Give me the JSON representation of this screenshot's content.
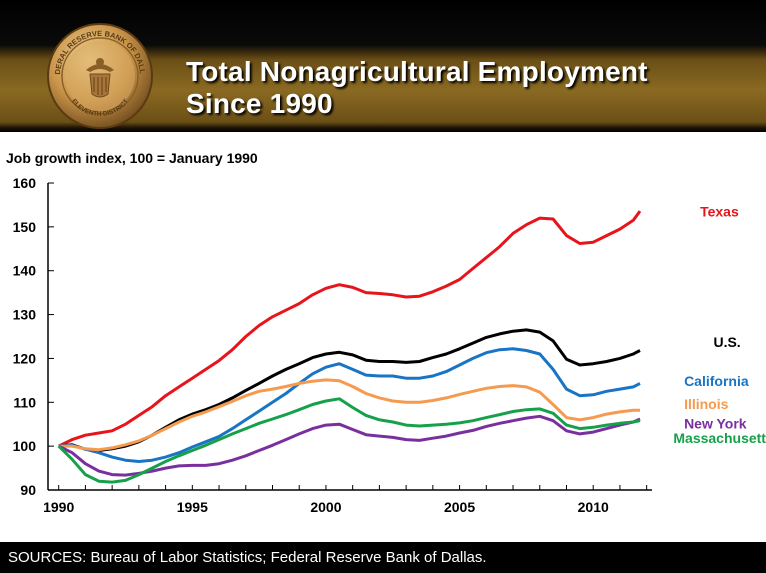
{
  "header": {
    "title_line1": "Total Nonagricultural  Employment",
    "title_line2": "Since 1990",
    "seal_text_top": "FEDERAL RESERVE BANK OF DALLAS",
    "seal_text_bottom": "ELEVENTH DISTRICT"
  },
  "footer": {
    "sources": "SOURCES: Bureau of Labor Statistics; Federal Reserve Bank of Dallas."
  },
  "chart_data": {
    "type": "line",
    "ylabel": "Job growth index, 100 = January 1990",
    "xlim": [
      1989.6,
      2012.2
    ],
    "ylim": [
      90,
      160
    ],
    "yticks": [
      90,
      100,
      110,
      120,
      130,
      140,
      150,
      160
    ],
    "xticks": [
      1990,
      1995,
      2000,
      2005,
      2010
    ],
    "grid": false,
    "legend_placement": "right, direct labels",
    "series": [
      {
        "name": "Texas",
        "color": "#e8141b",
        "x": [
          1990,
          1990.5,
          1991,
          1991.5,
          1992,
          1992.5,
          1993,
          1993.5,
          1994,
          1994.5,
          1995,
          1995.5,
          1996,
          1996.5,
          1997,
          1997.5,
          1998,
          1998.5,
          1999,
          1999.5,
          2000,
          2000.5,
          2001,
          2001.5,
          2002,
          2002.5,
          2003,
          2003.5,
          2004,
          2004.5,
          2005,
          2005.5,
          2006,
          2006.5,
          2007,
          2007.5,
          2008,
          2008.5,
          2009,
          2009.5,
          2010,
          2010.5,
          2011,
          2011.5,
          2011.75
        ],
        "values": [
          100,
          101.5,
          102.5,
          103,
          103.5,
          105,
          107,
          109,
          111.5,
          113.5,
          115.5,
          117.5,
          119.5,
          122,
          125,
          127.5,
          129.5,
          131,
          132.5,
          134.5,
          136,
          136.8,
          136.2,
          135,
          134.8,
          134.5,
          134,
          134.2,
          135.2,
          136.5,
          138,
          140.5,
          143,
          145.5,
          148.5,
          150.5,
          152,
          151.8,
          148,
          146.2,
          146.5,
          148,
          149.5,
          151.5,
          153.6
        ]
      },
      {
        "name": "U.S.",
        "color": "#000000",
        "x": [
          1990,
          1990.5,
          1991,
          1991.5,
          1992,
          1992.5,
          1993,
          1993.5,
          1994,
          1994.5,
          1995,
          1995.5,
          1996,
          1996.5,
          1997,
          1997.5,
          1998,
          1998.5,
          1999,
          1999.5,
          2000,
          2000.5,
          2001,
          2001.5,
          2002,
          2002.5,
          2003,
          2003.5,
          2004,
          2004.5,
          2005,
          2005.5,
          2006,
          2006.5,
          2007,
          2007.5,
          2008,
          2008.5,
          2009,
          2009.5,
          2010,
          2010.5,
          2011,
          2011.5,
          2011.75
        ],
        "values": [
          100,
          100.3,
          99.3,
          99,
          99.4,
          100,
          101,
          102.5,
          104.3,
          106,
          107.3,
          108.3,
          109.5,
          111,
          112.7,
          114.3,
          116,
          117.5,
          118.8,
          120.2,
          121,
          121.4,
          120.8,
          119.6,
          119.3,
          119.3,
          119.1,
          119.3,
          120.2,
          121,
          122.2,
          123.5,
          124.8,
          125.6,
          126.2,
          126.5,
          126,
          124,
          119.8,
          118.5,
          118.8,
          119.3,
          120,
          121,
          121.8
        ]
      },
      {
        "name": "California",
        "color": "#1874c4",
        "x": [
          1990,
          1990.5,
          1991,
          1991.5,
          1992,
          1992.5,
          1993,
          1993.5,
          1994,
          1994.5,
          1995,
          1995.5,
          1996,
          1996.5,
          1997,
          1997.5,
          1998,
          1998.5,
          1999,
          1999.5,
          2000,
          2000.5,
          2001,
          2001.5,
          2002,
          2002.5,
          2003,
          2003.5,
          2004,
          2004.5,
          2005,
          2005.5,
          2006,
          2006.5,
          2007,
          2007.5,
          2008,
          2008.5,
          2009,
          2009.5,
          2010,
          2010.5,
          2011,
          2011.5,
          2011.75
        ],
        "values": [
          100,
          100.2,
          99.3,
          98.5,
          97.5,
          96.8,
          96.5,
          96.8,
          97.5,
          98.5,
          99.8,
          101,
          102.2,
          104,
          106,
          108,
          110,
          112,
          114.3,
          116.5,
          118,
          118.8,
          117.5,
          116.2,
          116,
          116,
          115.5,
          115.5,
          116,
          117,
          118.5,
          120,
          121.3,
          122,
          122.2,
          121.8,
          121,
          117.5,
          113,
          111.5,
          111.7,
          112.5,
          113,
          113.5,
          114.3
        ]
      },
      {
        "name": "Illinois",
        "color": "#f59a4e",
        "x": [
          1990,
          1990.5,
          1991,
          1991.5,
          1992,
          1992.5,
          1993,
          1993.5,
          1994,
          1994.5,
          1995,
          1995.5,
          1996,
          1996.5,
          1997,
          1997.5,
          1998,
          1998.5,
          1999,
          1999.5,
          2000,
          2000.5,
          2001,
          2001.5,
          2002,
          2002.5,
          2003,
          2003.5,
          2004,
          2004.5,
          2005,
          2005.5,
          2006,
          2006.5,
          2007,
          2007.5,
          2008,
          2008.5,
          2009,
          2009.5,
          2010,
          2010.5,
          2011,
          2011.5,
          2011.75
        ],
        "values": [
          100,
          100,
          99.4,
          99.2,
          99.6,
          100.3,
          101.2,
          102.5,
          104,
          105.5,
          106.8,
          107.8,
          109,
          110.2,
          111.5,
          112.5,
          113,
          113.6,
          114.3,
          114.8,
          115.1,
          114.9,
          113.6,
          112,
          111,
          110.3,
          110,
          110,
          110.4,
          111,
          111.8,
          112.5,
          113.2,
          113.6,
          113.8,
          113.5,
          112.3,
          109.5,
          106.5,
          106,
          106.5,
          107.3,
          107.8,
          108.2,
          108.2
        ]
      },
      {
        "name": "New York",
        "color": "#7a2f9e",
        "x": [
          1990,
          1990.5,
          1991,
          1991.5,
          1992,
          1992.5,
          1993,
          1993.5,
          1994,
          1994.5,
          1995,
          1995.5,
          1996,
          1996.5,
          1997,
          1997.5,
          1998,
          1998.5,
          1999,
          1999.5,
          2000,
          2000.5,
          2001,
          2001.5,
          2002,
          2002.5,
          2003,
          2003.5,
          2004,
          2004.5,
          2005,
          2005.5,
          2006,
          2006.5,
          2007,
          2007.5,
          2008,
          2008.5,
          2009,
          2009.5,
          2010,
          2010.5,
          2011,
          2011.5,
          2011.75
        ],
        "values": [
          100,
          98.5,
          96,
          94.3,
          93.5,
          93.4,
          93.8,
          94.3,
          95,
          95.5,
          95.6,
          95.6,
          96,
          96.8,
          97.8,
          99,
          100.2,
          101.5,
          102.8,
          104,
          104.8,
          105,
          103.8,
          102.6,
          102.3,
          102,
          101.5,
          101.3,
          101.8,
          102.3,
          103,
          103.6,
          104.5,
          105.2,
          105.8,
          106.4,
          106.8,
          105.8,
          103.5,
          102.8,
          103.2,
          104,
          104.8,
          105.5,
          106.2
        ]
      },
      {
        "name": "Massachusetts",
        "color": "#17a04a",
        "x": [
          1990,
          1990.5,
          1991,
          1991.5,
          1992,
          1992.5,
          1993,
          1993.5,
          1994,
          1994.5,
          1995,
          1995.5,
          1996,
          1996.5,
          1997,
          1997.5,
          1998,
          1998.5,
          1999,
          1999.5,
          2000,
          2000.5,
          2001,
          2001.5,
          2002,
          2002.5,
          2003,
          2003.5,
          2004,
          2004.5,
          2005,
          2005.5,
          2006,
          2006.5,
          2007,
          2007.5,
          2008,
          2008.5,
          2009,
          2009.5,
          2010,
          2010.5,
          2011,
          2011.5,
          2011.75
        ],
        "values": [
          100,
          97,
          93.5,
          92,
          91.8,
          92.2,
          93.5,
          95,
          96.5,
          97.8,
          99,
          100.2,
          101.5,
          102.8,
          104,
          105.2,
          106.2,
          107.2,
          108.3,
          109.5,
          110.3,
          110.8,
          108.8,
          107,
          106,
          105.5,
          104.8,
          104.6,
          104.8,
          105,
          105.3,
          105.8,
          106.5,
          107.2,
          107.9,
          108.3,
          108.5,
          107.5,
          104.8,
          104,
          104.3,
          104.8,
          105.2,
          105.5,
          105.8
        ]
      }
    ]
  }
}
